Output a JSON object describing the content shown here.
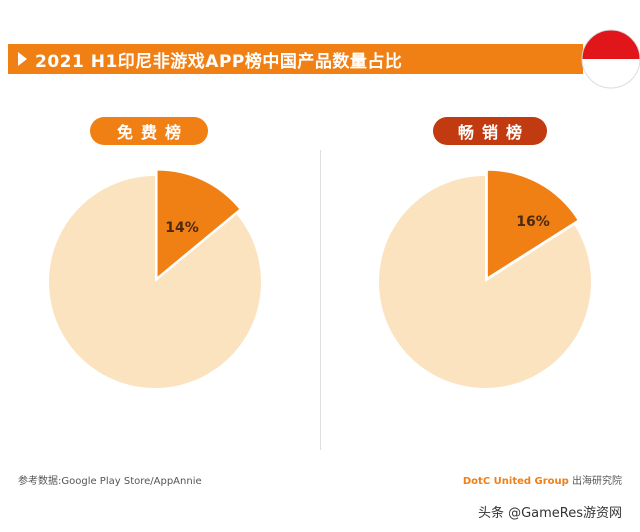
{
  "title": "2021 H1印尼非游戏APP榜中国产品数量占比",
  "colors": {
    "orange": "#f07f14",
    "dark_red": "#c13a10",
    "slice_rest": "#fbe3c0",
    "flag_red": "#e0161a"
  },
  "chart_data": [
    {
      "type": "pie",
      "title": "免费榜",
      "values": [
        14,
        86
      ],
      "data_labels": [
        "14%",
        ""
      ],
      "highlight_color": "#f07f14",
      "rest_color": "#fbe3c0"
    },
    {
      "type": "pie",
      "title": "畅销榜",
      "values": [
        16,
        84
      ],
      "data_labels": [
        "16%",
        ""
      ],
      "highlight_color": "#f07f14",
      "rest_color": "#fbe3c0"
    }
  ],
  "footer": {
    "source": "参考数据:Google Play Store/AppAnnie",
    "brand_name": "DotC United Group",
    "brand_suffix": "出海研究院",
    "credit": "头条 @GameRes游资网"
  }
}
